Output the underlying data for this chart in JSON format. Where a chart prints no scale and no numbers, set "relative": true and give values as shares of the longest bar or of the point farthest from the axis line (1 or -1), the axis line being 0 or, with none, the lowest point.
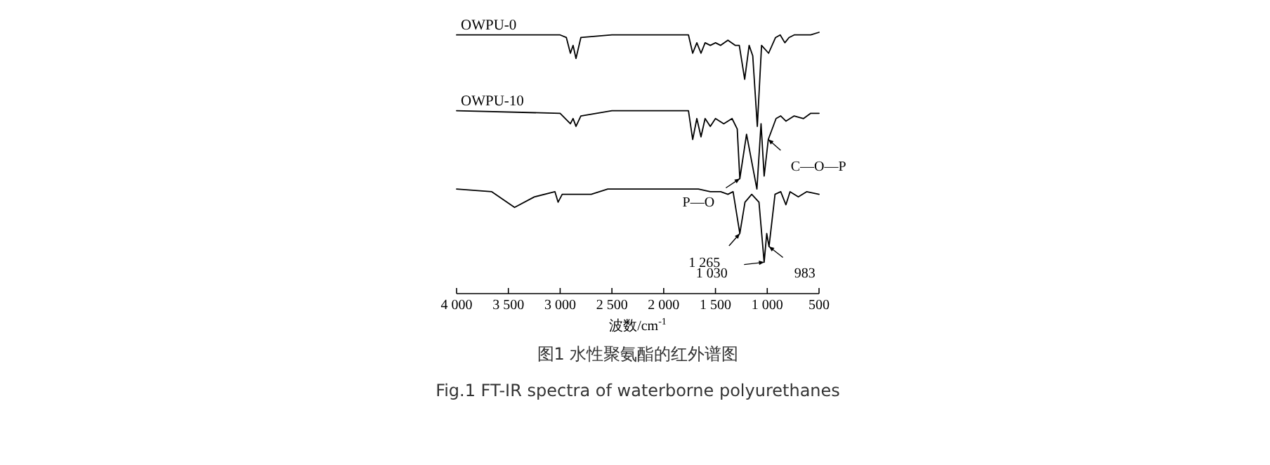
{
  "chart_data": {
    "type": "line",
    "relative": true,
    "title": "图1 水性聚氨酯的红外谱图",
    "subtitle": "Fig.1 FT-IR spectra of waterborne polyurethanes",
    "xlabel": "波数/cm$^{-1}$",
    "xlim": [
      4000,
      500
    ],
    "xticks": [
      {
        "value": 4000,
        "label": "4 000"
      },
      {
        "value": 3500,
        "label": "3 500"
      },
      {
        "value": 3000,
        "label": "3 000"
      },
      {
        "value": 2500,
        "label": "2 500"
      },
      {
        "value": 2000,
        "label": "2 000"
      },
      {
        "value": 1500,
        "label": "1 500"
      },
      {
        "value": 1000,
        "label": "1 000"
      },
      500
    ],
    "tick_labels": "x",
    "series": [
      {
        "name": "OWPU-0",
        "color": "#000000",
        "x": [
          4000,
          3000,
          2940,
          2901,
          2875,
          2847,
          2800,
          2500,
          1761,
          1720,
          1680,
          1640,
          1600,
          1550,
          1500,
          1450,
          1380,
          1310,
          1270,
          1218,
          1175,
          1140,
          1096,
          1055,
          987,
          920,
          875,
          830,
          790,
          740,
          650,
          580,
          500
        ],
        "values": [
          0.99,
          0.99,
          0.98,
          0.92,
          0.95,
          0.9,
          0.98,
          0.99,
          0.99,
          0.92,
          0.96,
          0.92,
          0.96,
          0.95,
          0.96,
          0.95,
          0.97,
          0.95,
          0.95,
          0.82,
          0.95,
          0.91,
          0.64,
          0.95,
          0.92,
          0.98,
          0.99,
          0.96,
          0.98,
          0.99,
          0.99,
          0.99,
          1
        ]
      },
      {
        "name": "OWPU-10",
        "color": "#000000",
        "x": [
          4000,
          3000,
          2901,
          2875,
          2847,
          2800,
          2500,
          1761,
          1720,
          1680,
          1640,
          1600,
          1550,
          1500,
          1420,
          1340,
          1290,
          1265,
          1200,
          1100,
          1060,
          1030,
          990,
          915,
          870,
          820,
          740,
          650,
          580,
          500
        ],
        "values": [
          0.7,
          0.69,
          0.65,
          0.67,
          0.64,
          0.68,
          0.7,
          0.7,
          0.59,
          0.67,
          0.6,
          0.67,
          0.64,
          0.67,
          0.65,
          0.67,
          0.63,
          0.44,
          0.61,
          0.4,
          0.65,
          0.45,
          0.59,
          0.67,
          0.68,
          0.66,
          0.68,
          0.67,
          0.69,
          0.69
        ]
      },
      {
        "color": "#000000",
        "x": [
          4000,
          3660,
          3440,
          3250,
          3050,
          3020,
          2980,
          2700,
          2540,
          1665,
          1550,
          1450,
          1380,
          1330,
          1265,
          1215,
          1150,
          1080,
          1030,
          1005,
          983,
          925,
          870,
          820,
          780,
          700,
          620,
          500
        ],
        "values": [
          0.4,
          0.39,
          0.33,
          0.37,
          0.39,
          0.35,
          0.38,
          0.38,
          0.4,
          0.4,
          0.39,
          0.39,
          0.38,
          0.39,
          0.23,
          0.35,
          0.38,
          0.35,
          0.12,
          0.23,
          0.18,
          0.38,
          0.39,
          0.34,
          0.39,
          0.37,
          0.39,
          0.38
        ]
      }
    ],
    "annotations": [
      {
        "text": "P—O",
        "x": 1265,
        "y": 0.44
      },
      {
        "text": "C—O—P",
        "x": 990,
        "y": 0.59
      },
      {
        "text": "1 265",
        "x": 1265,
        "y": 0.23
      },
      {
        "text": "1 030",
        "x": 1030,
        "y": 0.12
      },
      {
        "text": "983",
        "x": 983,
        "y": 0.18
      }
    ]
  }
}
